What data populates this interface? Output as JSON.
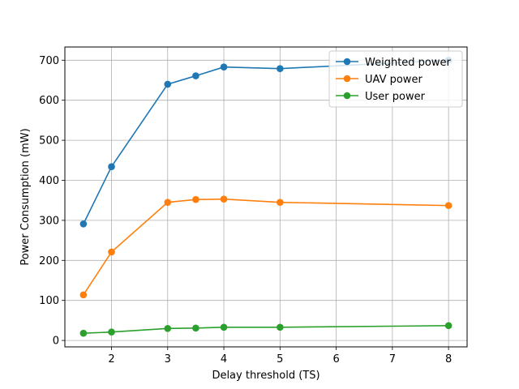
{
  "chart_data": {
    "type": "line",
    "title": "",
    "xlabel": "Delay threshold (TS)",
    "ylabel": "Power Consumption (mW)",
    "xlim": [
      1.17,
      8.33
    ],
    "ylim": [
      -16,
      733
    ],
    "xticks": [
      2,
      3,
      4,
      5,
      6,
      7,
      8
    ],
    "yticks": [
      0,
      100,
      200,
      300,
      400,
      500,
      600,
      700
    ],
    "grid": true,
    "legend_position": "top-right",
    "series": [
      {
        "name": "Weighted power",
        "color": "#1f77b4",
        "x": [
          1.5,
          2,
          3,
          3.5,
          4,
          5,
          8
        ],
        "y": [
          291,
          434,
          640,
          661,
          683,
          679,
          700
        ]
      },
      {
        "name": "UAV power",
        "color": "#ff7f0e",
        "x": [
          1.5,
          2,
          3,
          3.5,
          4,
          5,
          8
        ],
        "y": [
          114,
          221,
          345,
          352,
          353,
          345,
          337
        ]
      },
      {
        "name": "User power",
        "color": "#2ca02c",
        "x": [
          1.5,
          2,
          3,
          3.5,
          4,
          5,
          8
        ],
        "y": [
          18,
          21,
          30,
          31,
          33,
          33,
          37
        ]
      }
    ]
  }
}
